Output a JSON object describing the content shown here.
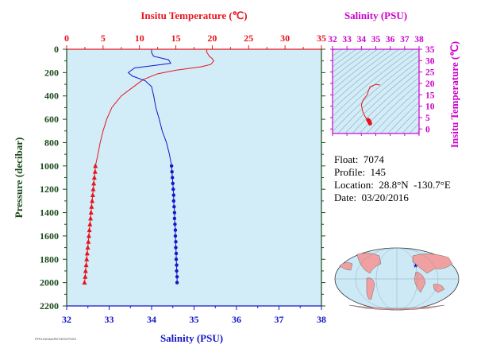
{
  "main_chart": {
    "top_axis_title": "Insitu Temperature (℃)",
    "bottom_axis_title": "Salinity (PSU)",
    "left_axis_title": "Pressure (decibar)",
    "colors": {
      "temperature": "#e8141c",
      "salinity": "#1515c8",
      "pressure_axis": "#1a4a1a",
      "panel": "#d2edf8"
    }
  },
  "ts_chart": {
    "top_axis_title": "Salinity (PSU)",
    "right_axis_title": "Insitu Temperature (℃)",
    "colors": {
      "axis": "#cc00cc",
      "isopycnal": "#8aa8b8",
      "panel": "#d2edf8",
      "trace": "#e8141c"
    }
  },
  "float_info": {
    "float_line": "Float:  7074",
    "profile_line": "Profile:  145",
    "location_line": "Location:  28.8°N  -130.7°E",
    "date_line": "Date:  03/20/2016"
  },
  "map": {
    "colors": {
      "ocean": "#cde9f5",
      "land": "#f0a0a0",
      "marker": "#1515c8"
    }
  },
  "footer_text": "PFEL/NOAA/RDT/EDCPHSX",
  "chart_data": [
    {
      "type": "line",
      "title": "",
      "x_top": {
        "label": "Insitu Temperature (℃)",
        "range": [
          0,
          35
        ],
        "ticks": [
          0,
          5,
          10,
          15,
          20,
          25,
          30,
          35
        ]
      },
      "x_bottom": {
        "label": "Salinity (PSU)",
        "range": [
          32,
          38
        ],
        "ticks": [
          32,
          33,
          34,
          35,
          36,
          37,
          38
        ]
      },
      "y": {
        "label": "Pressure (decibar)",
        "range": [
          0,
          2200
        ],
        "inverted": true,
        "ticks": [
          0,
          200,
          400,
          600,
          800,
          1000,
          1200,
          1400,
          1600,
          1800,
          2000,
          2200
        ]
      },
      "grid": false,
      "series": [
        {
          "axis": "top",
          "marker": "triangle",
          "points": [
            [
              19.3,
              0
            ],
            [
              19.2,
              20
            ],
            [
              19.4,
              40
            ],
            [
              19.6,
              60
            ],
            [
              20.0,
              80
            ],
            [
              20.2,
              100
            ],
            [
              19.8,
              130
            ],
            [
              18.5,
              150
            ],
            [
              15.0,
              180
            ],
            [
              12.5,
              210
            ],
            [
              10.5,
              260
            ],
            [
              9.0,
              330
            ],
            [
              7.5,
              400
            ],
            [
              6.2,
              500
            ],
            [
              5.5,
              600
            ],
            [
              5.0,
              700
            ],
            [
              4.6,
              800
            ],
            [
              4.3,
              900
            ],
            [
              3.95,
              1000
            ],
            [
              3.9,
              1050
            ],
            [
              3.8,
              1100
            ],
            [
              3.72,
              1150
            ],
            [
              3.65,
              1200
            ],
            [
              3.58,
              1250
            ],
            [
              3.5,
              1300
            ],
            [
              3.42,
              1350
            ],
            [
              3.35,
              1400
            ],
            [
              3.28,
              1450
            ],
            [
              3.2,
              1500
            ],
            [
              3.12,
              1550
            ],
            [
              3.05,
              1600
            ],
            [
              2.98,
              1650
            ],
            [
              2.9,
              1700
            ],
            [
              2.82,
              1750
            ],
            [
              2.75,
              1800
            ],
            [
              2.68,
              1850
            ],
            [
              2.6,
              1900
            ],
            [
              2.55,
              1950
            ],
            [
              2.45,
              2000
            ]
          ]
        },
        {
          "axis": "bottom",
          "marker": "circle",
          "points": [
            [
              34.0,
              0
            ],
            [
              34.0,
              30
            ],
            [
              34.05,
              60
            ],
            [
              34.4,
              90
            ],
            [
              34.45,
              120
            ],
            [
              34.25,
              130
            ],
            [
              33.6,
              160
            ],
            [
              33.45,
              200
            ],
            [
              33.55,
              230
            ],
            [
              33.85,
              270
            ],
            [
              34.0,
              320
            ],
            [
              34.05,
              400
            ],
            [
              34.1,
              500
            ],
            [
              34.18,
              600
            ],
            [
              34.25,
              700
            ],
            [
              34.35,
              800
            ],
            [
              34.42,
              900
            ],
            [
              34.47,
              1000
            ],
            [
              34.48,
              1050
            ],
            [
              34.49,
              1100
            ],
            [
              34.5,
              1150
            ],
            [
              34.51,
              1200
            ],
            [
              34.52,
              1250
            ],
            [
              34.52,
              1300
            ],
            [
              34.53,
              1350
            ],
            [
              34.54,
              1400
            ],
            [
              34.54,
              1450
            ],
            [
              34.55,
              1500
            ],
            [
              34.56,
              1550
            ],
            [
              34.56,
              1600
            ],
            [
              34.57,
              1650
            ],
            [
              34.57,
              1700
            ],
            [
              34.58,
              1750
            ],
            [
              34.58,
              1800
            ],
            [
              34.59,
              1850
            ],
            [
              34.59,
              1900
            ],
            [
              34.6,
              1950
            ],
            [
              34.6,
              2000
            ]
          ]
        }
      ]
    },
    {
      "type": "line",
      "title": "",
      "x": {
        "label": "Salinity (PSU)",
        "range": [
          32,
          38
        ],
        "ticks": [
          32,
          33,
          34,
          35,
          36,
          37,
          38
        ]
      },
      "y": {
        "label": "Insitu Temperature (℃)",
        "range": [
          -2,
          35
        ],
        "ticks": [
          0,
          5,
          10,
          15,
          20,
          25,
          30,
          35
        ]
      },
      "grid": false,
      "background": "isopycnals",
      "series": [
        {
          "points": [
            [
              35.3,
              19.3
            ],
            [
              35.0,
              19.6
            ],
            [
              34.6,
              18.5
            ],
            [
              34.5,
              17.0
            ],
            [
              34.4,
              15.0
            ],
            [
              34.1,
              12.5
            ],
            [
              34.0,
              10.5
            ],
            [
              34.05,
              9.0
            ],
            [
              34.1,
              7.5
            ],
            [
              34.2,
              6.2
            ],
            [
              34.3,
              5.0
            ],
            [
              34.4,
              4.3
            ],
            [
              34.47,
              3.95
            ],
            [
              34.52,
              3.6
            ],
            [
              34.55,
              3.2
            ],
            [
              34.57,
              2.9
            ],
            [
              34.6,
              2.45
            ]
          ]
        }
      ]
    }
  ]
}
